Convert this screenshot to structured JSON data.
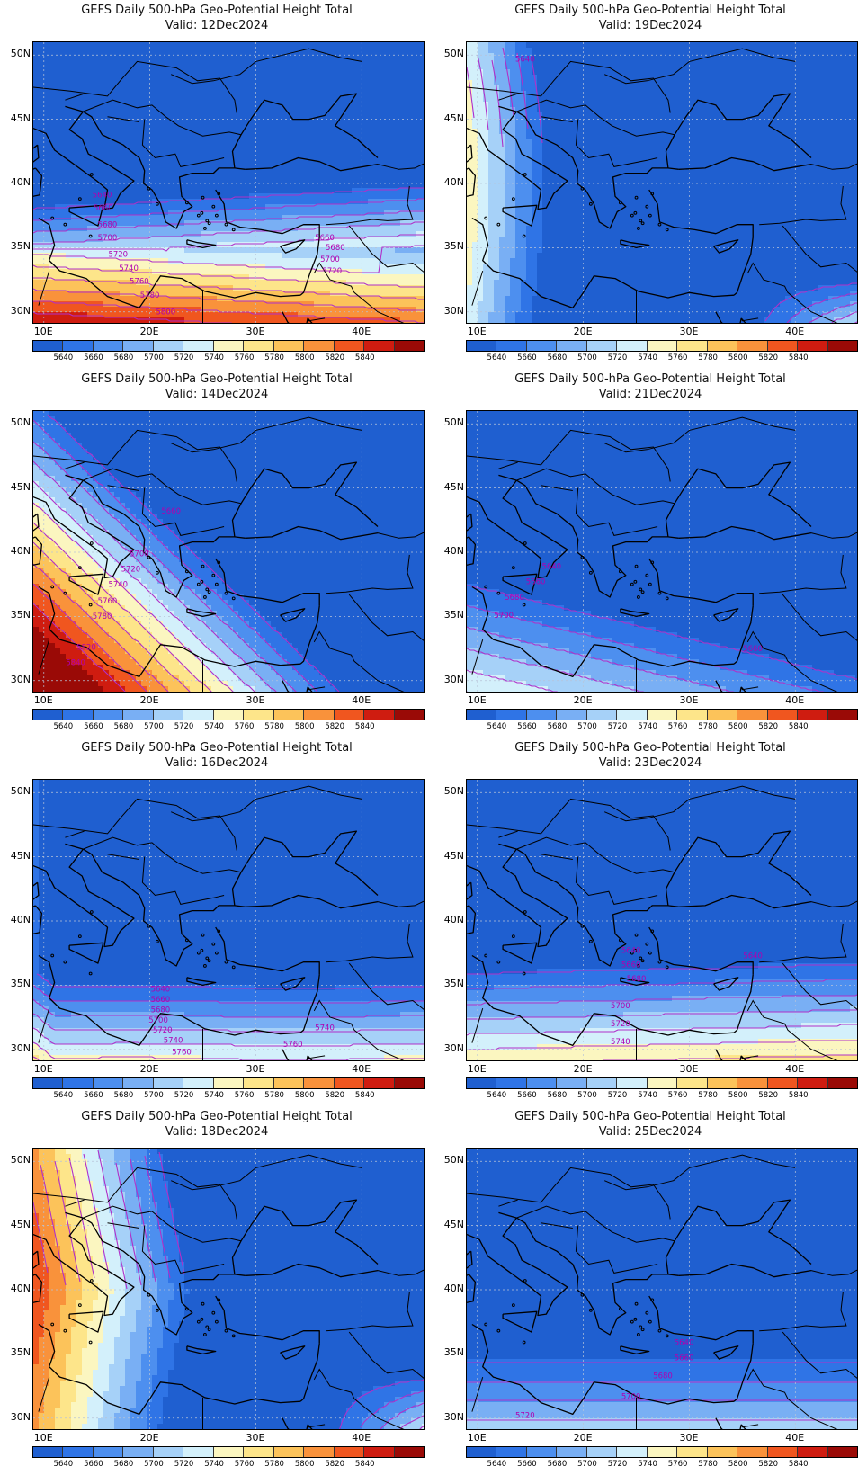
{
  "common": {
    "title": "GEFS Daily 500-hPa Geo-Potential Height Total",
    "valid_prefix": "Valid:"
  },
  "axes": {
    "lat_ticks": [
      "50N",
      "45N",
      "40N",
      "35N",
      "30N"
    ],
    "lon_ticks": [
      "10E",
      "20E",
      "30E",
      "40E"
    ],
    "lat_values": [
      50,
      45,
      40,
      35,
      30
    ],
    "lon_values": [
      10,
      20,
      30,
      40
    ],
    "lon_range": [
      9,
      46
    ],
    "lat_range": [
      29,
      51
    ]
  },
  "colorbar": {
    "labels": [
      "5640",
      "5660",
      "5680",
      "5700",
      "5720",
      "5740",
      "5760",
      "5780",
      "5800",
      "5820",
      "5840"
    ],
    "colors": [
      "#1f5fd0",
      "#2f74e6",
      "#4d8fef",
      "#79aff4",
      "#a6d1f8",
      "#d3f0fb",
      "#fbf6c0",
      "#fde58a",
      "#fcc35a",
      "#f9923b",
      "#f0561f",
      "#cf1c10",
      "#9a0a06"
    ]
  },
  "colors": {
    "contour": "#b030c8",
    "contour_label": "#b000b0",
    "coast": "#000000",
    "gridline": "#b8c4d8"
  },
  "maps": [
    {
      "valid": "Valid: 12Dec2024",
      "labels": [
        {
          "text": "5640",
          "lon": 15.5,
          "lat": 38.9
        },
        {
          "text": "5660",
          "lon": 15.6,
          "lat": 37.9
        },
        {
          "text": "5680",
          "lon": 16.0,
          "lat": 36.6
        },
        {
          "text": "5700",
          "lon": 16.0,
          "lat": 35.6
        },
        {
          "text": "5720",
          "lon": 17.0,
          "lat": 34.3
        },
        {
          "text": "5740",
          "lon": 18.0,
          "lat": 33.2
        },
        {
          "text": "5760",
          "lon": 19.0,
          "lat": 32.2
        },
        {
          "text": "5780",
          "lon": 20.0,
          "lat": 31.1
        },
        {
          "text": "5800",
          "lon": 21.5,
          "lat": 29.8
        },
        {
          "text": "5660",
          "lon": 36.5,
          "lat": 35.6
        },
        {
          "text": "5680",
          "lon": 37.5,
          "lat": 34.8
        },
        {
          "text": "5700",
          "lon": 37.0,
          "lat": 33.9
        },
        {
          "text": "5720",
          "lon": 37.2,
          "lat": 33.0
        }
      ]
    },
    {
      "valid": "Valid: 19Dec2024",
      "labels": [
        {
          "text": "5640",
          "lon": 14.5,
          "lat": 49.5
        }
      ]
    },
    {
      "valid": "Valid: 14Dec2024",
      "labels": [
        {
          "text": "5660",
          "lon": 22.0,
          "lat": 43.0
        },
        {
          "text": "5700",
          "lon": 19.0,
          "lat": 39.7
        },
        {
          "text": "5720",
          "lon": 18.2,
          "lat": 38.5
        },
        {
          "text": "5740",
          "lon": 17.0,
          "lat": 37.3
        },
        {
          "text": "5760",
          "lon": 16.0,
          "lat": 36.0
        },
        {
          "text": "5780",
          "lon": 15.5,
          "lat": 34.8
        },
        {
          "text": "5820",
          "lon": 14.0,
          "lat": 32.4
        },
        {
          "text": "5840",
          "lon": 13.0,
          "lat": 31.2
        }
      ]
    },
    {
      "valid": "Valid: 21Dec2024",
      "labels": [
        {
          "text": "5640",
          "lon": 17.0,
          "lat": 38.7
        },
        {
          "text": "5660",
          "lon": 15.5,
          "lat": 37.5
        },
        {
          "text": "5680",
          "lon": 13.5,
          "lat": 36.3
        },
        {
          "text": "5700",
          "lon": 12.5,
          "lat": 34.9
        },
        {
          "text": "5660",
          "lon": 36.0,
          "lat": 32.3
        }
      ]
    },
    {
      "valid": "Valid: 16Dec2024",
      "labels": [
        {
          "text": "5640",
          "lon": 21.0,
          "lat": 34.5
        },
        {
          "text": "5660",
          "lon": 21.0,
          "lat": 33.7
        },
        {
          "text": "5680",
          "lon": 21.0,
          "lat": 32.9
        },
        {
          "text": "5700",
          "lon": 20.8,
          "lat": 32.1
        },
        {
          "text": "5720",
          "lon": 21.2,
          "lat": 31.3
        },
        {
          "text": "5740",
          "lon": 22.2,
          "lat": 30.5
        },
        {
          "text": "5760",
          "lon": 23.0,
          "lat": 29.6
        },
        {
          "text": "5760",
          "lon": 33.5,
          "lat": 30.2
        },
        {
          "text": "5740",
          "lon": 36.5,
          "lat": 31.5
        }
      ]
    },
    {
      "valid": "Valid: 23Dec2024",
      "labels": [
        {
          "text": "5640",
          "lon": 24.5,
          "lat": 37.5
        },
        {
          "text": "5660",
          "lon": 24.5,
          "lat": 36.4
        },
        {
          "text": "5680",
          "lon": 25.0,
          "lat": 35.3
        },
        {
          "text": "5700",
          "lon": 23.5,
          "lat": 33.2
        },
        {
          "text": "5720",
          "lon": 23.5,
          "lat": 31.8
        },
        {
          "text": "5740",
          "lon": 23.5,
          "lat": 30.4
        },
        {
          "text": "5640",
          "lon": 36.0,
          "lat": 37.1
        }
      ]
    },
    {
      "valid": "Valid: 18Dec2024",
      "labels": []
    },
    {
      "valid": "Valid: 25Dec2024",
      "labels": [
        {
          "text": "5640",
          "lon": 29.5,
          "lat": 35.7
        },
        {
          "text": "5660",
          "lon": 29.5,
          "lat": 34.5
        },
        {
          "text": "5680",
          "lon": 27.5,
          "lat": 33.1
        },
        {
          "text": "5700",
          "lon": 24.5,
          "lat": 31.5
        },
        {
          "text": "5720",
          "lon": 14.5,
          "lat": 30.0
        }
      ]
    }
  ]
}
